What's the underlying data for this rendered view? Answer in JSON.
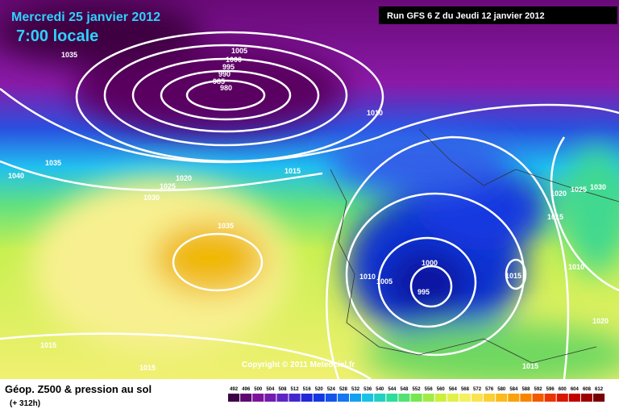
{
  "header": {
    "date": "Mercredi 25 janvier 2012",
    "time": "7:00 locale",
    "run": "Run GFS 6 Z du Jeudi 12 janvier 2012"
  },
  "map": {
    "isobar_labels": [
      1035,
      1005,
      1000,
      995,
      990,
      985,
      980,
      1010,
      1035,
      1015,
      1020,
      1025,
      1030,
      1040,
      1035,
      1020,
      1025,
      1030,
      1015,
      1000,
      1010,
      1005,
      995,
      1015,
      1010,
      1020,
      1015,
      1015,
      1015
    ],
    "copyright": "Copyright © 2011 Meteociel.fr"
  },
  "legend": {
    "title": "Géop. Z500 & pression au sol",
    "lead": "(+ 312h)",
    "scale": [
      492,
      496,
      500,
      504,
      508,
      512,
      516,
      520,
      524,
      528,
      532,
      536,
      540,
      544,
      548,
      552,
      556,
      560,
      564,
      568,
      572,
      576,
      580,
      584,
      588,
      592,
      596,
      600,
      604,
      608,
      612
    ]
  }
}
